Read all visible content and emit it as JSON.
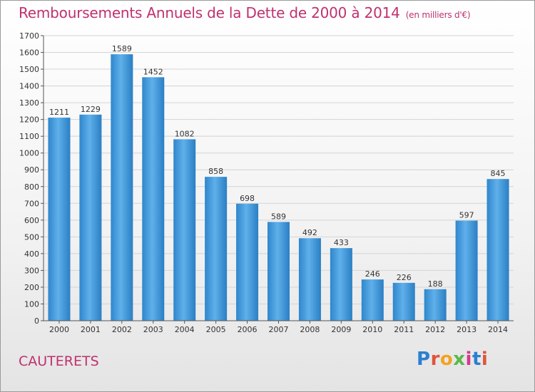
{
  "chart_data": {
    "type": "bar",
    "title": "Remboursements Annuels de la Dette de 2000 à 2014",
    "unit": "(en milliers d'€)",
    "xlabel": "",
    "ylabel": "",
    "ylim": [
      0,
      1700
    ],
    "ytick_step": 100,
    "grid": true,
    "categories": [
      "2000",
      "2001",
      "2002",
      "2003",
      "2004",
      "2005",
      "2006",
      "2007",
      "2008",
      "2009",
      "2010",
      "2011",
      "2012",
      "2013",
      "2014"
    ],
    "values": [
      1211,
      1229,
      1589,
      1452,
      1082,
      858,
      698,
      589,
      492,
      433,
      246,
      226,
      188,
      597,
      845
    ],
    "bar_color": "#3b93d6"
  },
  "footer": {
    "city": "CAUTERETS",
    "logo": "Proxiti",
    "logo_colors": [
      "#2b7fd0",
      "#e0553a",
      "#f2a324",
      "#59b94a",
      "#d9388c",
      "#2b7fd0",
      "#e0553a"
    ]
  }
}
